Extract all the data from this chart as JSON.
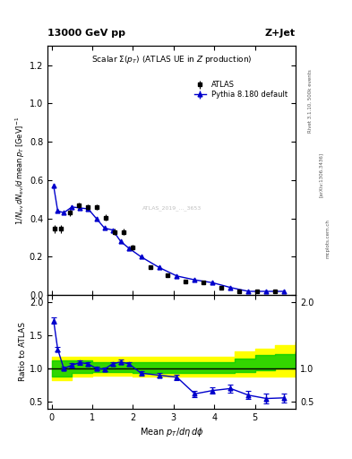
{
  "title_left": "13000 GeV pp",
  "title_right": "Z+Jet",
  "plot_title": "Scalar Σ(p_{T}) (ATLAS UE in Z production)",
  "ylabel_main": "1/N_{ev} dN_{ev}/d mean p_{T} [GeV]^{-1}",
  "ylabel_ratio": "Ratio to ATLAS",
  "xlabel": "Mean p_{T}/dη dϕ",
  "rivet_label": "Rivet 3.1.10, 500k events",
  "arxiv_label": "[arXiv:1306.3436]",
  "mcplots_label": "mcplots.cern.ch",
  "watermark": "ATLAS_2019_..._3653",
  "atlas_x": [
    0.08,
    0.22,
    0.44,
    0.66,
    0.88,
    1.1,
    1.32,
    1.54,
    1.76,
    1.98,
    2.42,
    2.86,
    3.3,
    3.74,
    4.18,
    4.62,
    5.06,
    5.5
  ],
  "atlas_y": [
    0.345,
    0.345,
    0.43,
    0.47,
    0.46,
    0.46,
    0.405,
    0.33,
    0.33,
    0.25,
    0.145,
    0.105,
    0.07,
    0.065,
    0.04,
    0.02,
    0.02,
    0.02
  ],
  "atlas_yerr": [
    0.02,
    0.02,
    0.015,
    0.015,
    0.015,
    0.015,
    0.015,
    0.015,
    0.015,
    0.015,
    0.01,
    0.01,
    0.008,
    0.008,
    0.005,
    0.005,
    0.005,
    0.005
  ],
  "mc_x": [
    0.05,
    0.15,
    0.3,
    0.5,
    0.7,
    0.9,
    1.1,
    1.3,
    1.5,
    1.7,
    1.9,
    2.2,
    2.64,
    3.08,
    3.52,
    3.96,
    4.4,
    4.84,
    5.28,
    5.72
  ],
  "mc_y": [
    0.57,
    0.44,
    0.43,
    0.46,
    0.455,
    0.45,
    0.4,
    0.35,
    0.34,
    0.28,
    0.245,
    0.2,
    0.145,
    0.1,
    0.08,
    0.065,
    0.04,
    0.02,
    0.02,
    0.02
  ],
  "mc_yerr": [
    0.01,
    0.008,
    0.008,
    0.008,
    0.008,
    0.008,
    0.008,
    0.008,
    0.008,
    0.008,
    0.008,
    0.008,
    0.006,
    0.006,
    0.005,
    0.005,
    0.004,
    0.004,
    0.004,
    0.004
  ],
  "ratio_x": [
    0.05,
    0.15,
    0.3,
    0.5,
    0.7,
    0.9,
    1.1,
    1.3,
    1.5,
    1.7,
    1.9,
    2.2,
    2.64,
    3.08,
    3.52,
    3.96,
    4.4,
    4.84,
    5.28,
    5.72
  ],
  "ratio_y": [
    1.72,
    1.29,
    1.0,
    1.05,
    1.09,
    1.07,
    1.0,
    0.99,
    1.07,
    1.1,
    1.07,
    0.93,
    0.9,
    0.87,
    0.62,
    0.67,
    0.7,
    0.6,
    0.55,
    0.56
  ],
  "ratio_yerr": [
    0.05,
    0.04,
    0.03,
    0.03,
    0.03,
    0.03,
    0.03,
    0.03,
    0.03,
    0.03,
    0.03,
    0.03,
    0.04,
    0.04,
    0.05,
    0.05,
    0.06,
    0.06,
    0.07,
    0.07
  ],
  "band_x_edges": [
    0.0,
    0.5,
    1.0,
    1.5,
    2.0,
    2.5,
    3.0,
    3.5,
    4.0,
    4.5,
    5.0,
    5.5,
    6.0
  ],
  "yellow_band_lo": [
    0.82,
    0.88,
    0.9,
    0.9,
    0.88,
    0.88,
    0.88,
    0.88,
    0.88,
    0.88,
    0.88,
    0.88,
    0.88
  ],
  "yellow_band_hi": [
    1.18,
    1.18,
    1.18,
    1.18,
    1.18,
    1.18,
    1.18,
    1.18,
    1.18,
    1.25,
    1.3,
    1.35,
    1.4
  ],
  "green_band_lo": [
    0.88,
    0.93,
    0.95,
    0.95,
    0.93,
    0.93,
    0.93,
    0.93,
    0.93,
    0.95,
    0.98,
    1.0,
    1.02
  ],
  "green_band_hi": [
    1.12,
    1.12,
    1.1,
    1.1,
    1.1,
    1.1,
    1.1,
    1.1,
    1.1,
    1.15,
    1.2,
    1.22,
    1.25
  ],
  "main_ylim": [
    0.0,
    1.3
  ],
  "ratio_ylim": [
    0.4,
    2.1
  ],
  "xlim": [
    -0.1,
    6.0
  ],
  "mc_color": "#0000cc",
  "atlas_color": "black",
  "background_color": "white",
  "yellow_color": "#ffff00",
  "green_color": "#00cc00",
  "main_yticks": [
    0.0,
    0.2,
    0.4,
    0.6,
    0.8,
    1.0,
    1.2
  ],
  "ratio_yticks": [
    0.5,
    1.0,
    1.5,
    2.0
  ],
  "xticks": [
    0,
    1,
    2,
    3,
    4,
    5
  ]
}
